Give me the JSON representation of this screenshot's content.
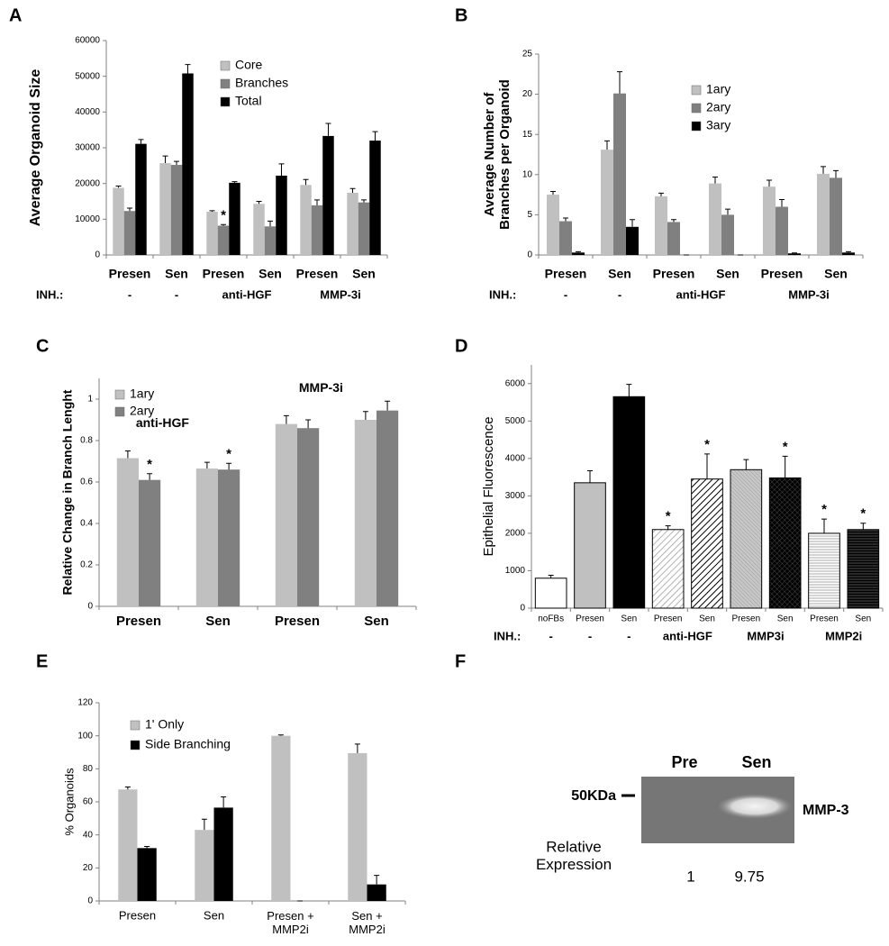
{
  "chart_data": [
    {
      "type": "bar",
      "panel": "A",
      "ylabel": "Average Organoid Size",
      "categories": [
        "Presen",
        "Sen",
        "Presen",
        "Sen",
        "Presen",
        "Sen"
      ],
      "inh_label": "INH.:",
      "inhibitors": [
        "-",
        "-",
        "anti-HGF",
        null,
        "MMP-3i",
        null
      ],
      "ylim": [
        0,
        60000
      ],
      "yticks": [
        0,
        10000,
        20000,
        30000,
        40000,
        50000,
        60000
      ],
      "legend": "upper-center",
      "series": [
        {
          "name": "Core",
          "color": "#c0c0c0",
          "values": [
            18800,
            25700,
            12100,
            14300,
            19600,
            17400
          ],
          "errors": [
            500,
            2000,
            300,
            700,
            1500,
            1200
          ]
        },
        {
          "name": "Branches",
          "color": "#808080",
          "values": [
            12300,
            25200,
            8200,
            8000,
            13900,
            14700
          ],
          "errors": [
            800,
            1000,
            300,
            1500,
            1500,
            700
          ]
        },
        {
          "name": "Total",
          "color": "#000000",
          "values": [
            31100,
            50800,
            20200,
            22200,
            33300,
            32000
          ],
          "errors": [
            1200,
            2500,
            300,
            3300,
            3500,
            2500
          ]
        }
      ],
      "annotations": [
        {
          "text": "*",
          "series": 1,
          "index": 2
        }
      ]
    },
    {
      "type": "bar",
      "panel": "B",
      "ylabel": "Average Number of Branches per Organoid",
      "categories": [
        "Presen",
        "Sen",
        "Presen",
        "Sen",
        "Presen",
        "Sen"
      ],
      "inh_label": "INH.:",
      "inhibitors": [
        "-",
        "-",
        "anti-HGF",
        null,
        "MMP-3i",
        null
      ],
      "ylim": [
        0,
        25
      ],
      "yticks": [
        0,
        5,
        10,
        15,
        20,
        25
      ],
      "legend": "upper-right",
      "series": [
        {
          "name": "1ary",
          "color": "#c0c0c0",
          "values": [
            7.5,
            13.1,
            7.3,
            8.9,
            8.5,
            10.1
          ],
          "errors": [
            0.4,
            1.1,
            0.4,
            0.8,
            0.8,
            0.9
          ]
        },
        {
          "name": "2ary",
          "color": "#808080",
          "values": [
            4.2,
            20.1,
            4.1,
            5.0,
            6.0,
            9.6
          ],
          "errors": [
            0.4,
            2.7,
            0.3,
            0.7,
            0.9,
            0.9
          ]
        },
        {
          "name": "3ary",
          "color": "#000000",
          "values": [
            0.3,
            3.5,
            0,
            0,
            0.2,
            0.3
          ],
          "errors": [
            0.1,
            0.9,
            0,
            0,
            0.05,
            0.1
          ]
        }
      ],
      "annotations": []
    },
    {
      "type": "bar",
      "panel": "C",
      "ylabel": "Relative Change in Branch Lenght",
      "categories": [
        "Presen",
        "Sen",
        "Presen",
        "Sen"
      ],
      "ylim": [
        0,
        1.1
      ],
      "yticks": [
        0,
        0.2,
        0.4,
        0.6,
        0.8,
        1
      ],
      "legend": "upper-left",
      "series": [
        {
          "name": "1ary",
          "color": "#c0c0c0",
          "values": [
            0.715,
            0.665,
            0.88,
            0.9
          ],
          "errors": [
            0.035,
            0.03,
            0.04,
            0.04
          ]
        },
        {
          "name": "2ary",
          "color": "#808080",
          "values": [
            0.61,
            0.66,
            0.86,
            0.945
          ],
          "errors": [
            0.03,
            0.03,
            0.04,
            0.045
          ]
        }
      ],
      "annotations": [
        {
          "text": "*",
          "series": 1,
          "index": 0
        },
        {
          "text": "*",
          "series": 1,
          "index": 1
        },
        {
          "text": "anti-HGF",
          "index": 0
        },
        {
          "text": "MMP-3i",
          "index": 2
        }
      ]
    },
    {
      "type": "bar",
      "panel": "D",
      "ylabel": "Epithelial Fluorescence",
      "categories": [
        "noFBs",
        "Presen",
        "Sen",
        "Presen",
        "Sen",
        "Presen",
        "Sen",
        "Presen",
        "Sen"
      ],
      "inh_label": "INH.:",
      "inhibitors": [
        "-",
        "-",
        "-",
        "anti-HGF",
        null,
        "MMP3i",
        null,
        "MMP2i",
        null
      ],
      "ylim": [
        0,
        6500
      ],
      "yticks": [
        0,
        1000,
        2000,
        3000,
        4000,
        5000,
        6000
      ],
      "series": [
        {
          "values": [
            800,
            3350,
            5650,
            2100,
            3450,
            3700,
            3480,
            2000,
            2100
          ],
          "errors": [
            80,
            320,
            330,
            100,
            670,
            270,
            580,
            380,
            170
          ],
          "colors": [
            "#ffffff",
            "#c0c0c0",
            "#000000",
            "#ffffff",
            "#ffffff",
            "#c0c0c0",
            "#000000",
            "#ffffff",
            "#000000"
          ],
          "patterns": [
            "solid",
            "solid",
            "solid",
            "diagonal-light",
            "diagonal-dark",
            "diagonal-gray",
            "cross-dark",
            "horizontal-light",
            "horizontal-dark"
          ]
        }
      ],
      "annotations": [
        {
          "text": "*",
          "series": 0,
          "index": 3
        },
        {
          "text": "*",
          "series": 0,
          "index": 4
        },
        {
          "text": "*",
          "series": 0,
          "index": 6
        },
        {
          "text": "*",
          "series": 0,
          "index": 7
        },
        {
          "text": "*",
          "series": 0,
          "index": 8
        }
      ]
    },
    {
      "type": "bar",
      "panel": "E",
      "ylabel": "% Organoids",
      "categories": [
        "Presen",
        "Sen",
        "Presen + MMP2i",
        "Sen + MMP2i"
      ],
      "ylim": [
        0,
        120
      ],
      "yticks": [
        0,
        20,
        40,
        60,
        80,
        100,
        120
      ],
      "legend": "upper-left",
      "series": [
        {
          "name": "1' Only",
          "color": "#c0c0c0",
          "values": [
            67.5,
            43,
            100,
            89.5
          ],
          "errors": [
            1.5,
            6.5,
            0.5,
            5.5
          ]
        },
        {
          "name": "Side Branching",
          "color": "#000000",
          "values": [
            32,
            56.5,
            0,
            10
          ],
          "errors": [
            1,
            6.5,
            0,
            5.5
          ]
        }
      ],
      "annotations": []
    }
  ],
  "blot": {
    "panel": "F",
    "lanes": [
      "Pre",
      "Sen"
    ],
    "marker": "50KDa",
    "band": "MMP-3",
    "row_label": "Relative Expression",
    "relative_expression": [
      1,
      9.75
    ]
  }
}
